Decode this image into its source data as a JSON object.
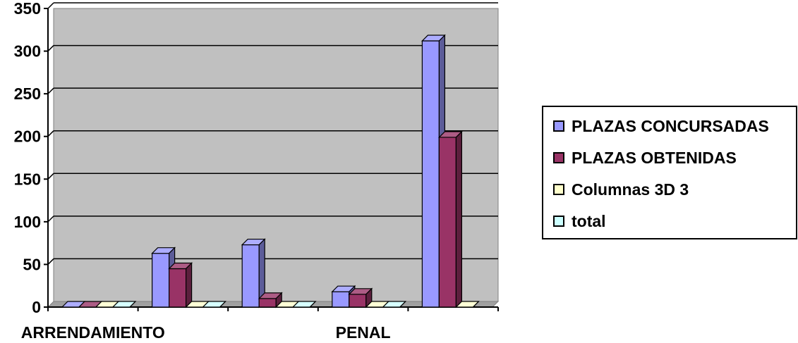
{
  "chart_data": {
    "type": "bar",
    "title": "",
    "xlabel": "",
    "ylabel": "",
    "ylim": [
      0,
      350
    ],
    "yticks": [
      0,
      50,
      100,
      150,
      200,
      250,
      300,
      350
    ],
    "grid": true,
    "legend_position": "right",
    "style": "3d-clustered-columns",
    "categories": [
      "ARRENDAMIENTO",
      "",
      "",
      "PENAL",
      ""
    ],
    "series": [
      {
        "name": "PLAZAS CONCURSADAS",
        "values": [
          0,
          63,
          73,
          18,
          312
        ],
        "color": "#9999ff"
      },
      {
        "name": "PLAZAS OBTENIDAS",
        "values": [
          0,
          45,
          10,
          15,
          199
        ],
        "color": "#993366"
      },
      {
        "name": "Columnas 3D 3",
        "values": [
          0,
          0,
          0,
          0,
          0
        ],
        "color": "#ffffcc"
      },
      {
        "name": "total",
        "values": [
          0,
          0,
          0,
          0,
          null
        ],
        "color": "#ccffff"
      }
    ],
    "plot_background": "#c0c0c0"
  }
}
